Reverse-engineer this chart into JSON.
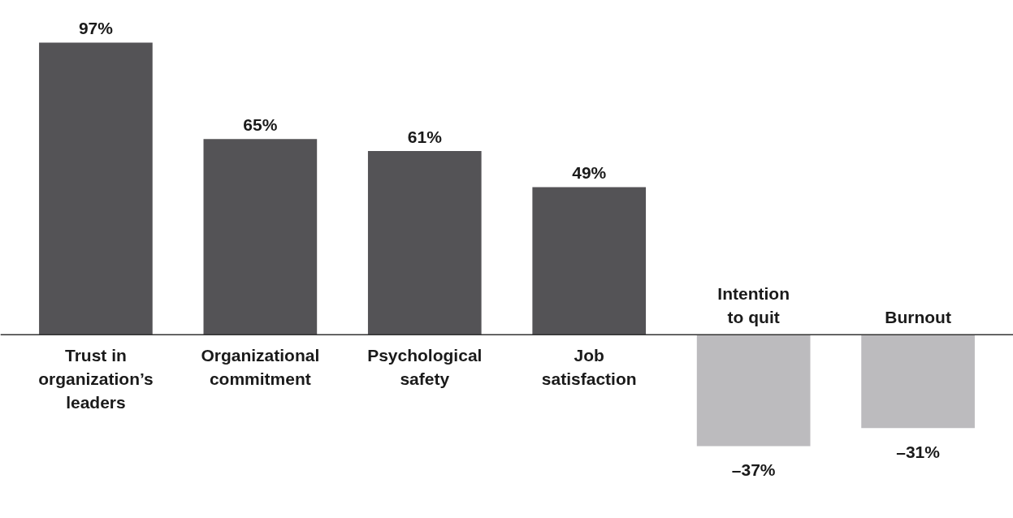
{
  "chart_data": {
    "type": "bar",
    "categories": [
      "Trust in organization’s leaders",
      "Organizational commitment",
      "Psychological safety",
      "Job satisfaction",
      "Intention to quit",
      "Burnout"
    ],
    "values": [
      97,
      65,
      61,
      49,
      -37,
      -31
    ],
    "colors": [
      "#545356",
      "#545356",
      "#545356",
      "#545356",
      "#bcbbbe",
      "#bcbbbe"
    ],
    "value_labels": [
      "97%",
      "65%",
      "61%",
      "49%",
      "–37%",
      "–31%"
    ],
    "ylim": [
      -61,
      111
    ]
  }
}
